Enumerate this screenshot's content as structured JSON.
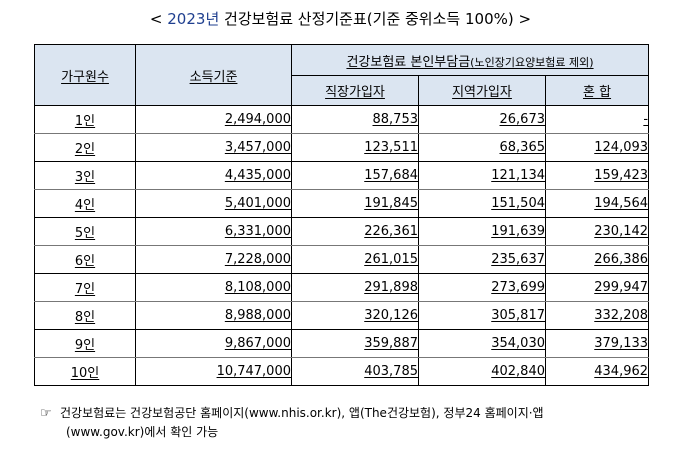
{
  "title": {
    "open": "< ",
    "year": "2023년",
    "rest": " 건강보험료 산정기준표(기준 중위소득 100%)",
    "close": " >"
  },
  "headers": {
    "household": "가구원수",
    "income": "소득기준",
    "copay_main": "건강보험료 본인부담금",
    "copay_sub": "(노인장기요양보험료 제외)",
    "employee": "직장가입자",
    "regional": "지역가입자",
    "mixed": "혼 합"
  },
  "rows": [
    {
      "household": "1인",
      "income": "2,494,000",
      "employee": "88,753",
      "regional": "26,673",
      "mixed": "-"
    },
    {
      "household": "2인",
      "income": "3,457,000",
      "employee": "123,511",
      "regional": "68,365",
      "mixed": "124,093"
    },
    {
      "household": "3인",
      "income": "4,435,000",
      "employee": "157,684",
      "regional": "121,134",
      "mixed": "159,423"
    },
    {
      "household": "4인",
      "income": "5,401,000",
      "employee": "191,845",
      "regional": "151,504",
      "mixed": "194,564"
    },
    {
      "household": "5인",
      "income": "6,331,000",
      "employee": "226,361",
      "regional": "191,639",
      "mixed": "230,142"
    },
    {
      "household": "6인",
      "income": "7,228,000",
      "employee": "261,015",
      "regional": "235,637",
      "mixed": "266,386"
    },
    {
      "household": "7인",
      "income": "8,108,000",
      "employee": "291,898",
      "regional": "273,699",
      "mixed": "299,947"
    },
    {
      "household": "8인",
      "income": "8,988,000",
      "employee": "320,126",
      "regional": "305,817",
      "mixed": "332,208"
    },
    {
      "household": "9인",
      "income": "9,867,000",
      "employee": "359,887",
      "regional": "354,030",
      "mixed": "379,133"
    },
    {
      "household": "10인",
      "income": "10,747,000",
      "employee": "403,785",
      "regional": "402,840",
      "mixed": "434,962"
    }
  ],
  "note": {
    "mark": "☞",
    "line1": "건강보험료는 건강보험공단 홈페이지(www.nhis.or.kr), 앱(The건강보험), 정부24 홈페이지·앱",
    "line2": "(www.gov.kr)에서 확인 가능"
  }
}
